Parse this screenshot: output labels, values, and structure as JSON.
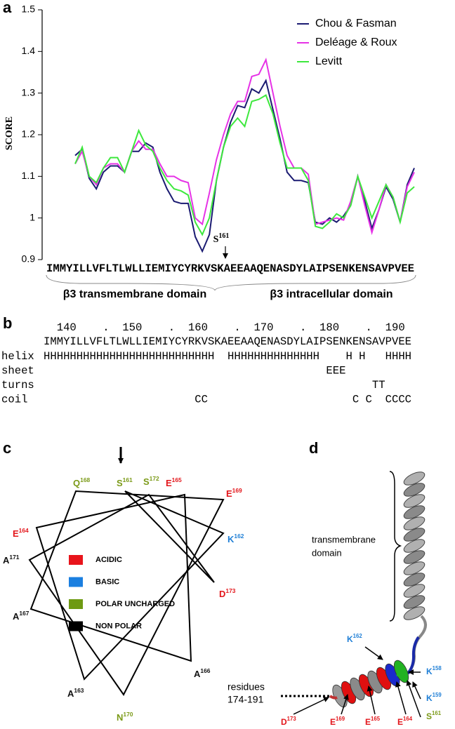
{
  "chart_data": {
    "type": "line",
    "panel_label": "a",
    "y_label": "SCORE",
    "x": [
      140,
      141,
      142,
      143,
      144,
      145,
      146,
      147,
      148,
      149,
      150,
      151,
      152,
      153,
      154,
      155,
      156,
      157,
      158,
      159,
      160,
      161,
      162,
      163,
      164,
      165,
      166,
      167,
      168,
      169,
      170,
      171,
      172,
      173,
      174,
      175,
      176,
      177,
      178,
      179,
      180,
      181,
      182,
      183,
      184,
      185,
      186,
      187,
      188
    ],
    "xlim": [
      140,
      188
    ],
    "ylim": [
      0.9,
      1.5
    ],
    "yticks": [
      0.9,
      1,
      1.1,
      1.2,
      1.3,
      1.4,
      1.5
    ],
    "legend": "upper right",
    "series": [
      {
        "name": "Chou & Fasman",
        "color": "#1b1b72",
        "values": [
          1.15,
          1.165,
          1.095,
          1.07,
          1.11,
          1.125,
          1.125,
          1.11,
          1.16,
          1.16,
          1.18,
          1.17,
          1.11,
          1.07,
          1.04,
          1.035,
          1.035,
          0.955,
          0.92,
          0.96,
          1.09,
          1.17,
          1.23,
          1.27,
          1.265,
          1.31,
          1.3,
          1.33,
          1.26,
          1.19,
          1.11,
          1.09,
          1.09,
          1.085,
          0.99,
          0.985,
          1.0,
          0.99,
          1.005,
          1.03,
          1.1,
          1.04,
          0.975,
          1.02,
          1.075,
          1.045,
          0.99,
          1.08,
          1.12
        ]
      },
      {
        "name": "Deléage & Roux",
        "color": "#e632e6",
        "values": [
          1.13,
          1.16,
          1.1,
          1.08,
          1.12,
          1.13,
          1.13,
          1.11,
          1.16,
          1.185,
          1.165,
          1.165,
          1.13,
          1.1,
          1.1,
          1.09,
          1.085,
          1.0,
          0.985,
          1.06,
          1.14,
          1.2,
          1.25,
          1.28,
          1.28,
          1.34,
          1.345,
          1.38,
          1.3,
          1.22,
          1.15,
          1.12,
          1.12,
          1.105,
          0.985,
          0.99,
          0.995,
          1.0,
          0.995,
          1.04,
          1.1,
          1.03,
          0.965,
          1.02,
          1.08,
          1.05,
          0.99,
          1.075,
          1.11
        ]
      },
      {
        "name": "Levitt",
        "color": "#3de83d",
        "values": [
          1.13,
          1.17,
          1.1,
          1.085,
          1.12,
          1.145,
          1.145,
          1.11,
          1.16,
          1.21,
          1.175,
          1.16,
          1.12,
          1.09,
          1.07,
          1.065,
          1.055,
          0.99,
          0.96,
          1.0,
          1.09,
          1.17,
          1.22,
          1.24,
          1.22,
          1.28,
          1.285,
          1.295,
          1.25,
          1.18,
          1.12,
          1.12,
          1.12,
          1.09,
          0.98,
          0.975,
          0.99,
          1.01,
          1.0,
          1.03,
          1.1,
          1.05,
          1.0,
          1.04,
          1.08,
          1.05,
          0.99,
          1.06,
          1.075
        ]
      }
    ],
    "sequence": "IMMYILLVFLTLWLLIEMIYCYRKVSKAEEAAQENASDYLAIPSENKENSAVPVEE",
    "annotation": {
      "letter": "S",
      "number": "161"
    },
    "domains": [
      "β3 transmembrane domain",
      "β3 intracellular domain"
    ]
  },
  "panel_b": {
    "label": "b",
    "ruler": "  140    .  150    .  160    .  170    .  180    .  190",
    "sequence": "IMMYILLVFLTLWLLIEMIYCYRKVSKAEEAAQENASDYLAIPSENKENSAVPVEE",
    "tracks": [
      {
        "name": "helix",
        "track": "HHHHHHHHHHHHHHHHHHHHHHHHHH  HHHHHHHHHHHHHH    H H   HHHH"
      },
      {
        "name": "sheet",
        "track": "                                           EEE"
      },
      {
        "name": "turns",
        "track": "                                                  TT"
      },
      {
        "name": "coil",
        "track": "                       CC                      C C  CCCC"
      }
    ]
  },
  "panel_c": {
    "label": "c",
    "residues": [
      {
        "letter": "S",
        "number": "161",
        "color": "#7b9a18"
      },
      {
        "letter": "K",
        "number": "162",
        "color": "#1f7fd6"
      },
      {
        "letter": "A",
        "number": "163",
        "color": "#111111"
      },
      {
        "letter": "E",
        "number": "164",
        "color": "#e3161b"
      },
      {
        "letter": "E",
        "number": "165",
        "color": "#e3161b"
      },
      {
        "letter": "A",
        "number": "166",
        "color": "#111111"
      },
      {
        "letter": "A",
        "number": "167",
        "color": "#111111"
      },
      {
        "letter": "Q",
        "number": "168",
        "color": "#7b9a18"
      },
      {
        "letter": "E",
        "number": "169",
        "color": "#e3161b"
      },
      {
        "letter": "N",
        "number": "170",
        "color": "#7b9a18"
      },
      {
        "letter": "A",
        "number": "171",
        "color": "#111111"
      },
      {
        "letter": "S",
        "number": "172",
        "color": "#7b9a18"
      },
      {
        "letter": "D",
        "number": "173",
        "color": "#e3161b"
      }
    ],
    "legend": [
      {
        "label": "ACIDIC",
        "color": "#e8141b"
      },
      {
        "label": "BASIC",
        "color": "#1b7fe0"
      },
      {
        "label": "POLAR UNCHARGED",
        "color": "#6e9a12"
      },
      {
        "label": "NON POLAR",
        "color": "#000000"
      }
    ]
  },
  "panel_d": {
    "label": "d",
    "transmembrane_domain": [
      "transmembrane",
      "domain"
    ],
    "residues_note": [
      "residues",
      "174-191"
    ],
    "residues": [
      {
        "letter": "K",
        "number": "158",
        "color": "#1f7fd6"
      },
      {
        "letter": "K",
        "number": "159",
        "color": "#1f7fd6"
      },
      {
        "letter": "S",
        "number": "161",
        "color": "#7b9a18"
      },
      {
        "letter": "K",
        "number": "162",
        "color": "#1f7fd6"
      },
      {
        "letter": "D",
        "number": "173",
        "color": "#e3161b"
      },
      {
        "letter": "E",
        "number": "169",
        "color": "#e3161b"
      },
      {
        "letter": "E",
        "number": "165",
        "color": "#e3161b"
      },
      {
        "letter": "E",
        "number": "164",
        "color": "#e3161b"
      }
    ]
  }
}
